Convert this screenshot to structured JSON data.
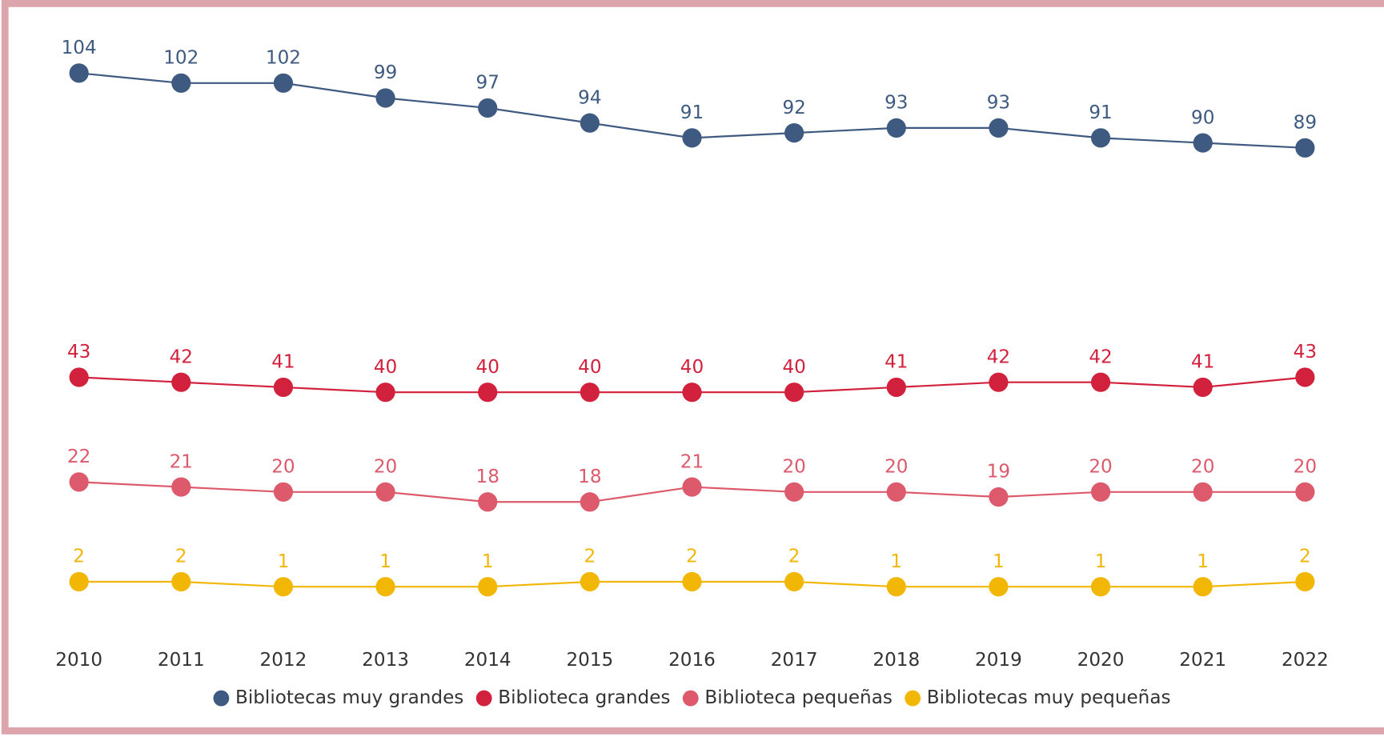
{
  "chart_data": {
    "type": "line",
    "categories": [
      "2010",
      "2011",
      "2012",
      "2013",
      "2014",
      "2015",
      "2016",
      "2017",
      "2018",
      "2019",
      "2020",
      "2021",
      "2022"
    ],
    "series": [
      {
        "name": "Bibliotecas muy grandes",
        "color": "#3e5a80",
        "values": [
          104,
          102,
          102,
          99,
          97,
          94,
          91,
          92,
          93,
          93,
          91,
          90,
          89
        ]
      },
      {
        "name": "Biblioteca grandes",
        "color": "#d2213c",
        "values": [
          43,
          42,
          41,
          40,
          40,
          40,
          40,
          40,
          41,
          42,
          42,
          41,
          43
        ]
      },
      {
        "name": "Biblioteca pequeñas",
        "color": "#dc5a6c",
        "values": [
          22,
          21,
          20,
          20,
          18,
          18,
          21,
          20,
          20,
          19,
          20,
          20,
          20
        ]
      },
      {
        "name": "Bibliotecas muy pequeñas",
        "color": "#f2b705",
        "values": [
          2,
          2,
          1,
          1,
          1,
          2,
          2,
          2,
          1,
          1,
          1,
          1,
          2
        ]
      }
    ],
    "ylim": [
      0,
      104
    ],
    "legend": "bottom"
  }
}
